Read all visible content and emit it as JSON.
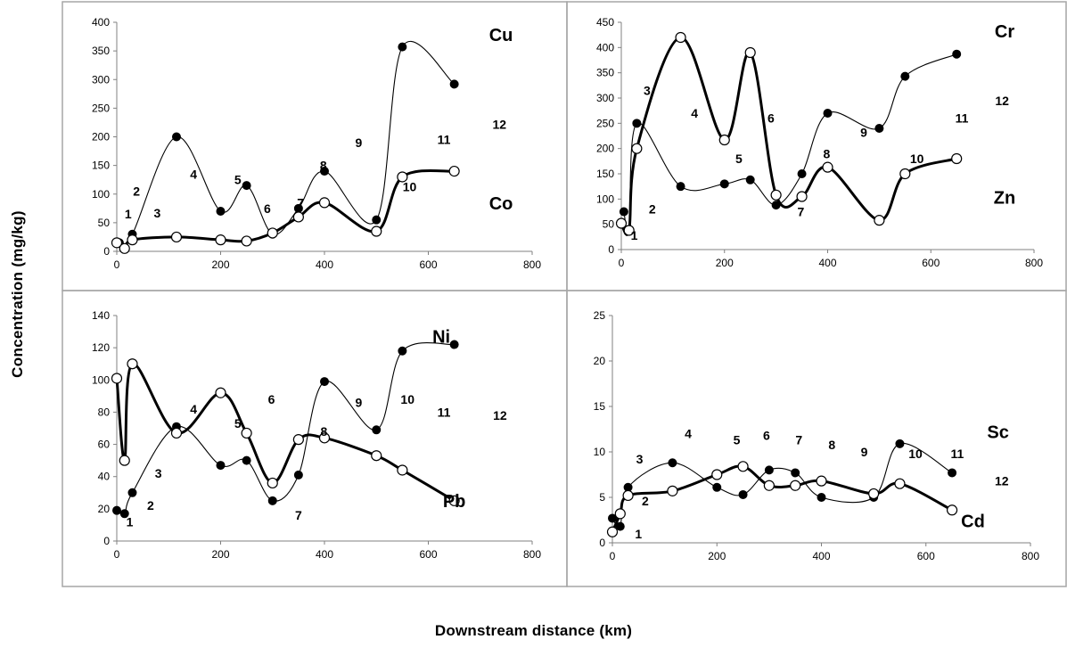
{
  "figure": {
    "ylabel": "Concentration (mg/kg)",
    "xlabel": "Downstream distance (km)"
  },
  "colors": {
    "filled": "#000000",
    "hollow": "#ffffff",
    "line": "#000000",
    "panel_border": "#a6a6a6"
  },
  "chart_data": [
    {
      "type": "line",
      "panel": "top-left",
      "xlim": [
        0,
        800
      ],
      "xticks": [
        0,
        200,
        400,
        600,
        800
      ],
      "ylim": [
        0,
        400
      ],
      "yticks": [
        0,
        50,
        100,
        150,
        200,
        250,
        300,
        350,
        400
      ],
      "grid": false,
      "series": [
        {
          "name": "Cu",
          "marker": "filled",
          "line": "thin",
          "x": [
            5,
            30,
            115,
            200,
            250,
            300,
            350,
            400,
            500,
            550,
            650
          ],
          "y": [
            15,
            30,
            200,
            70,
            115,
            30,
            75,
            140,
            55,
            357,
            292
          ]
        },
        {
          "name": "Co",
          "marker": "hollow",
          "line": "thick",
          "x": [
            0,
            15,
            30,
            115,
            200,
            250,
            300,
            350,
            400,
            500,
            550,
            650
          ],
          "y": [
            15,
            5,
            20,
            25,
            20,
            18,
            32,
            60,
            85,
            35,
            130,
            140
          ]
        }
      ],
      "annotations": [
        {
          "text": "Cu",
          "x": 740,
          "y": 378,
          "size": "large"
        },
        {
          "text": "Co",
          "x": 740,
          "y": 84,
          "size": "large"
        },
        {
          "text": "1",
          "x": 22,
          "y": 65
        },
        {
          "text": "2",
          "x": 38,
          "y": 105
        },
        {
          "text": "3",
          "x": 78,
          "y": 67
        },
        {
          "text": "4",
          "x": 148,
          "y": 135
        },
        {
          "text": "5",
          "x": 233,
          "y": 125
        },
        {
          "text": "6",
          "x": 290,
          "y": 75
        },
        {
          "text": "7",
          "x": 354,
          "y": 85
        },
        {
          "text": "8",
          "x": 398,
          "y": 150
        },
        {
          "text": "9",
          "x": 466,
          "y": 190
        },
        {
          "text": "10",
          "x": 564,
          "y": 113
        },
        {
          "text": "11",
          "x": 630,
          "y": 195
        },
        {
          "text": "12",
          "x": 737,
          "y": 222
        }
      ]
    },
    {
      "type": "line",
      "panel": "top-right",
      "xlim": [
        0,
        800
      ],
      "xticks": [
        0,
        200,
        400,
        600,
        800
      ],
      "ylim": [
        0,
        450
      ],
      "yticks": [
        0,
        50,
        100,
        150,
        200,
        250,
        300,
        350,
        400,
        450
      ],
      "grid": false,
      "series": [
        {
          "name": "Cr",
          "marker": "filled",
          "line": "thin",
          "x": [
            5,
            15,
            30,
            115,
            200,
            250,
            300,
            350,
            400,
            500,
            550,
            650
          ],
          "y": [
            75,
            40,
            250,
            125,
            130,
            138,
            88,
            150,
            270,
            240,
            343,
            387
          ]
        },
        {
          "name": "Zn",
          "marker": "hollow",
          "line": "thick",
          "x": [
            0,
            15,
            30,
            115,
            200,
            250,
            300,
            350,
            400,
            500,
            550,
            650
          ],
          "y": [
            52,
            38,
            200,
            420,
            217,
            390,
            108,
            105,
            163,
            58,
            150,
            180
          ]
        }
      ],
      "annotations": [
        {
          "text": "Cr",
          "x": 743,
          "y": 432,
          "size": "large"
        },
        {
          "text": "Zn",
          "x": 743,
          "y": 103,
          "size": "large"
        },
        {
          "text": "1",
          "x": 25,
          "y": 28
        },
        {
          "text": "2",
          "x": 60,
          "y": 80
        },
        {
          "text": "3",
          "x": 50,
          "y": 315
        },
        {
          "text": "4",
          "x": 142,
          "y": 270
        },
        {
          "text": "5",
          "x": 228,
          "y": 180
        },
        {
          "text": "6",
          "x": 290,
          "y": 260
        },
        {
          "text": "7",
          "x": 348,
          "y": 75
        },
        {
          "text": "8",
          "x": 398,
          "y": 190
        },
        {
          "text": "9",
          "x": 470,
          "y": 232
        },
        {
          "text": "10",
          "x": 573,
          "y": 180
        },
        {
          "text": "11",
          "x": 660,
          "y": 260
        },
        {
          "text": "12",
          "x": 738,
          "y": 295
        }
      ]
    },
    {
      "type": "line",
      "panel": "bottom-left",
      "xlim": [
        0,
        800
      ],
      "xticks": [
        0,
        200,
        400,
        600,
        800
      ],
      "ylim": [
        0,
        140
      ],
      "yticks": [
        0,
        20,
        40,
        60,
        80,
        100,
        120,
        140
      ],
      "grid": false,
      "series": [
        {
          "name": "Ni",
          "marker": "filled",
          "line": "thin",
          "x": [
            0,
            15,
            30,
            115,
            200,
            250,
            300,
            350,
            400,
            500,
            550,
            650
          ],
          "y": [
            19,
            17,
            30,
            71,
            47,
            50,
            25,
            41,
            99,
            69,
            118,
            122
          ]
        },
        {
          "name": "Pb",
          "marker": "hollow",
          "line": "thick",
          "x": [
            0,
            15,
            30,
            115,
            200,
            250,
            300,
            350,
            400,
            500,
            550,
            650
          ],
          "y": [
            101,
            50,
            110,
            67,
            92,
            67,
            36,
            63,
            64,
            53,
            44,
            25
          ]
        }
      ],
      "annotations": [
        {
          "text": "Ni",
          "x": 625,
          "y": 127,
          "size": "large"
        },
        {
          "text": "Pb",
          "x": 650,
          "y": 25,
          "size": "large"
        },
        {
          "text": "1",
          "x": 25,
          "y": 12
        },
        {
          "text": "2",
          "x": 65,
          "y": 22
        },
        {
          "text": "3",
          "x": 80,
          "y": 42
        },
        {
          "text": "4",
          "x": 148,
          "y": 82
        },
        {
          "text": "5",
          "x": 233,
          "y": 73
        },
        {
          "text": "6",
          "x": 298,
          "y": 88
        },
        {
          "text": "7",
          "x": 350,
          "y": 16
        },
        {
          "text": "8",
          "x": 399,
          "y": 68
        },
        {
          "text": "9",
          "x": 466,
          "y": 86
        },
        {
          "text": "10",
          "x": 560,
          "y": 88
        },
        {
          "text": "11",
          "x": 630,
          "y": 80
        },
        {
          "text": "12",
          "x": 738,
          "y": 78
        }
      ]
    },
    {
      "type": "line",
      "panel": "bottom-right",
      "xlim": [
        0,
        800
      ],
      "xticks": [
        0,
        200,
        400,
        600,
        800
      ],
      "ylim": [
        0,
        25
      ],
      "yticks": [
        0,
        5,
        10,
        15,
        20,
        25
      ],
      "grid": false,
      "series": [
        {
          "name": "Sc",
          "marker": "filled",
          "line": "thin",
          "x": [
            0,
            15,
            30,
            115,
            200,
            250,
            300,
            350,
            400,
            500,
            550,
            650
          ],
          "y": [
            2.7,
            1.8,
            6.1,
            8.8,
            6.1,
            5.3,
            8.0,
            7.7,
            5.0,
            5.0,
            10.9,
            7.7
          ]
        },
        {
          "name": "Cd",
          "marker": "hollow",
          "line": "thick",
          "x": [
            0,
            15,
            30,
            115,
            200,
            250,
            300,
            350,
            400,
            500,
            550,
            650
          ],
          "y": [
            1.2,
            3.2,
            5.2,
            5.7,
            7.5,
            8.4,
            6.3,
            6.3,
            6.8,
            5.4,
            6.5,
            3.6
          ]
        }
      ],
      "annotations": [
        {
          "text": "Sc",
          "x": 738,
          "y": 12.2,
          "size": "large"
        },
        {
          "text": "Cd",
          "x": 690,
          "y": 2.4,
          "size": "large"
        },
        {
          "text": "1",
          "x": 50,
          "y": 1.0
        },
        {
          "text": "2",
          "x": 63,
          "y": 4.6
        },
        {
          "text": "3",
          "x": 52,
          "y": 9.2
        },
        {
          "text": "4",
          "x": 145,
          "y": 12.0
        },
        {
          "text": "5",
          "x": 238,
          "y": 11.3
        },
        {
          "text": "6",
          "x": 295,
          "y": 11.8
        },
        {
          "text": "7",
          "x": 357,
          "y": 11.3
        },
        {
          "text": "8",
          "x": 420,
          "y": 10.8
        },
        {
          "text": "9",
          "x": 482,
          "y": 10.0
        },
        {
          "text": "10",
          "x": 580,
          "y": 9.8
        },
        {
          "text": "11",
          "x": 660,
          "y": 9.8
        },
        {
          "text": "12",
          "x": 745,
          "y": 6.8
        }
      ]
    }
  ]
}
